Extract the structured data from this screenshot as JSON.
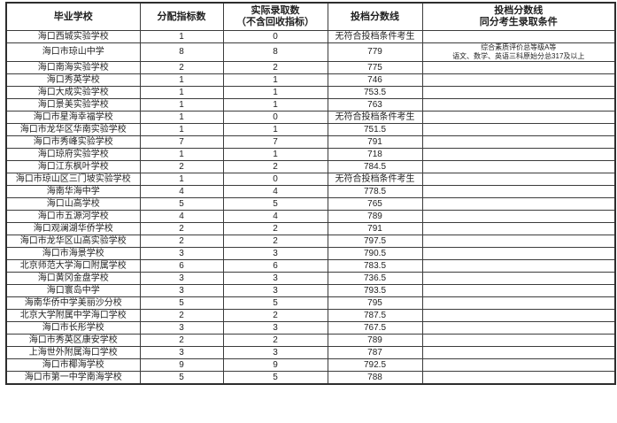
{
  "colors": {
    "background": "#ffffff",
    "border": "#3c3c3c",
    "text": "#1f1f1f"
  },
  "table": {
    "headers": [
      [
        "毕业学校"
      ],
      [
        "分配指标数"
      ],
      [
        "实际录取数",
        "（不含回收指标）"
      ],
      [
        "投档分数线"
      ],
      [
        "投档分数线",
        "同分考生录取条件"
      ]
    ],
    "rows": [
      {
        "school": "海口西城实验学校",
        "quota": "1",
        "actual": "0",
        "score": "无符合投档条件考生",
        "note": []
      },
      {
        "school": "海口市琼山中学",
        "quota": "8",
        "actual": "8",
        "score": "779",
        "note": [
          "综合素质评价总等级A等",
          "语文、数学、英语三科原始分总317及以上"
        ]
      },
      {
        "school": "海口南海实验学校",
        "quota": "2",
        "actual": "2",
        "score": "775",
        "note": []
      },
      {
        "school": "海口秀英学校",
        "quota": "1",
        "actual": "1",
        "score": "746",
        "note": []
      },
      {
        "school": "海口大成实验学校",
        "quota": "1",
        "actual": "1",
        "score": "753.5",
        "note": []
      },
      {
        "school": "海口景美实验学校",
        "quota": "1",
        "actual": "1",
        "score": "763",
        "note": []
      },
      {
        "school": "海口市星海幸福学校",
        "quota": "1",
        "actual": "0",
        "score": "无符合投档条件考生",
        "note": []
      },
      {
        "school": "海口市龙华区华南实验学校",
        "quota": "1",
        "actual": "1",
        "score": "751.5",
        "note": []
      },
      {
        "school": "海口市秀峰实验学校",
        "quota": "7",
        "actual": "7",
        "score": "791",
        "note": []
      },
      {
        "school": "海口琼府实验学校",
        "quota": "1",
        "actual": "1",
        "score": "718",
        "note": []
      },
      {
        "school": "海口江东枫叶学校",
        "quota": "2",
        "actual": "2",
        "score": "784.5",
        "note": []
      },
      {
        "school": "海口市琼山区三门坡实验学校",
        "quota": "1",
        "actual": "0",
        "score": "无符合投档条件考生",
        "note": []
      },
      {
        "school": "海南华海中学",
        "quota": "4",
        "actual": "4",
        "score": "778.5",
        "note": []
      },
      {
        "school": "海口山高学校",
        "quota": "5",
        "actual": "5",
        "score": "765",
        "note": []
      },
      {
        "school": "海口市五源河学校",
        "quota": "4",
        "actual": "4",
        "score": "789",
        "note": []
      },
      {
        "school": "海口观澜湖华侨学校",
        "quota": "2",
        "actual": "2",
        "score": "791",
        "note": []
      },
      {
        "school": "海口市龙华区山高实验学校",
        "quota": "2",
        "actual": "2",
        "score": "797.5",
        "note": []
      },
      {
        "school": "海口市海景学校",
        "quota": "3",
        "actual": "3",
        "score": "790.5",
        "note": []
      },
      {
        "school": "北京师范大学海口附属学校",
        "quota": "6",
        "actual": "6",
        "score": "783.5",
        "note": []
      },
      {
        "school": "海口黄冈金盘学校",
        "quota": "3",
        "actual": "3",
        "score": "736.5",
        "note": []
      },
      {
        "school": "海口寰岛中学",
        "quota": "3",
        "actual": "3",
        "score": "793.5",
        "note": []
      },
      {
        "school": "海南华侨中学美丽沙分校",
        "quota": "5",
        "actual": "5",
        "score": "795",
        "note": []
      },
      {
        "school": "北京大学附属中学海口学校",
        "quota": "2",
        "actual": "2",
        "score": "787.5",
        "note": []
      },
      {
        "school": "海口市长彤学校",
        "quota": "3",
        "actual": "3",
        "score": "767.5",
        "note": []
      },
      {
        "school": "海口市秀英区康安学校",
        "quota": "2",
        "actual": "2",
        "score": "789",
        "note": []
      },
      {
        "school": "上海世外附属海口学校",
        "quota": "3",
        "actual": "3",
        "score": "787",
        "note": []
      },
      {
        "school": "海口市椰海学校",
        "quota": "9",
        "actual": "9",
        "score": "792.5",
        "note": []
      },
      {
        "school": "海口市第一中学南海学校",
        "quota": "5",
        "actual": "5",
        "score": "788",
        "note": []
      }
    ]
  }
}
